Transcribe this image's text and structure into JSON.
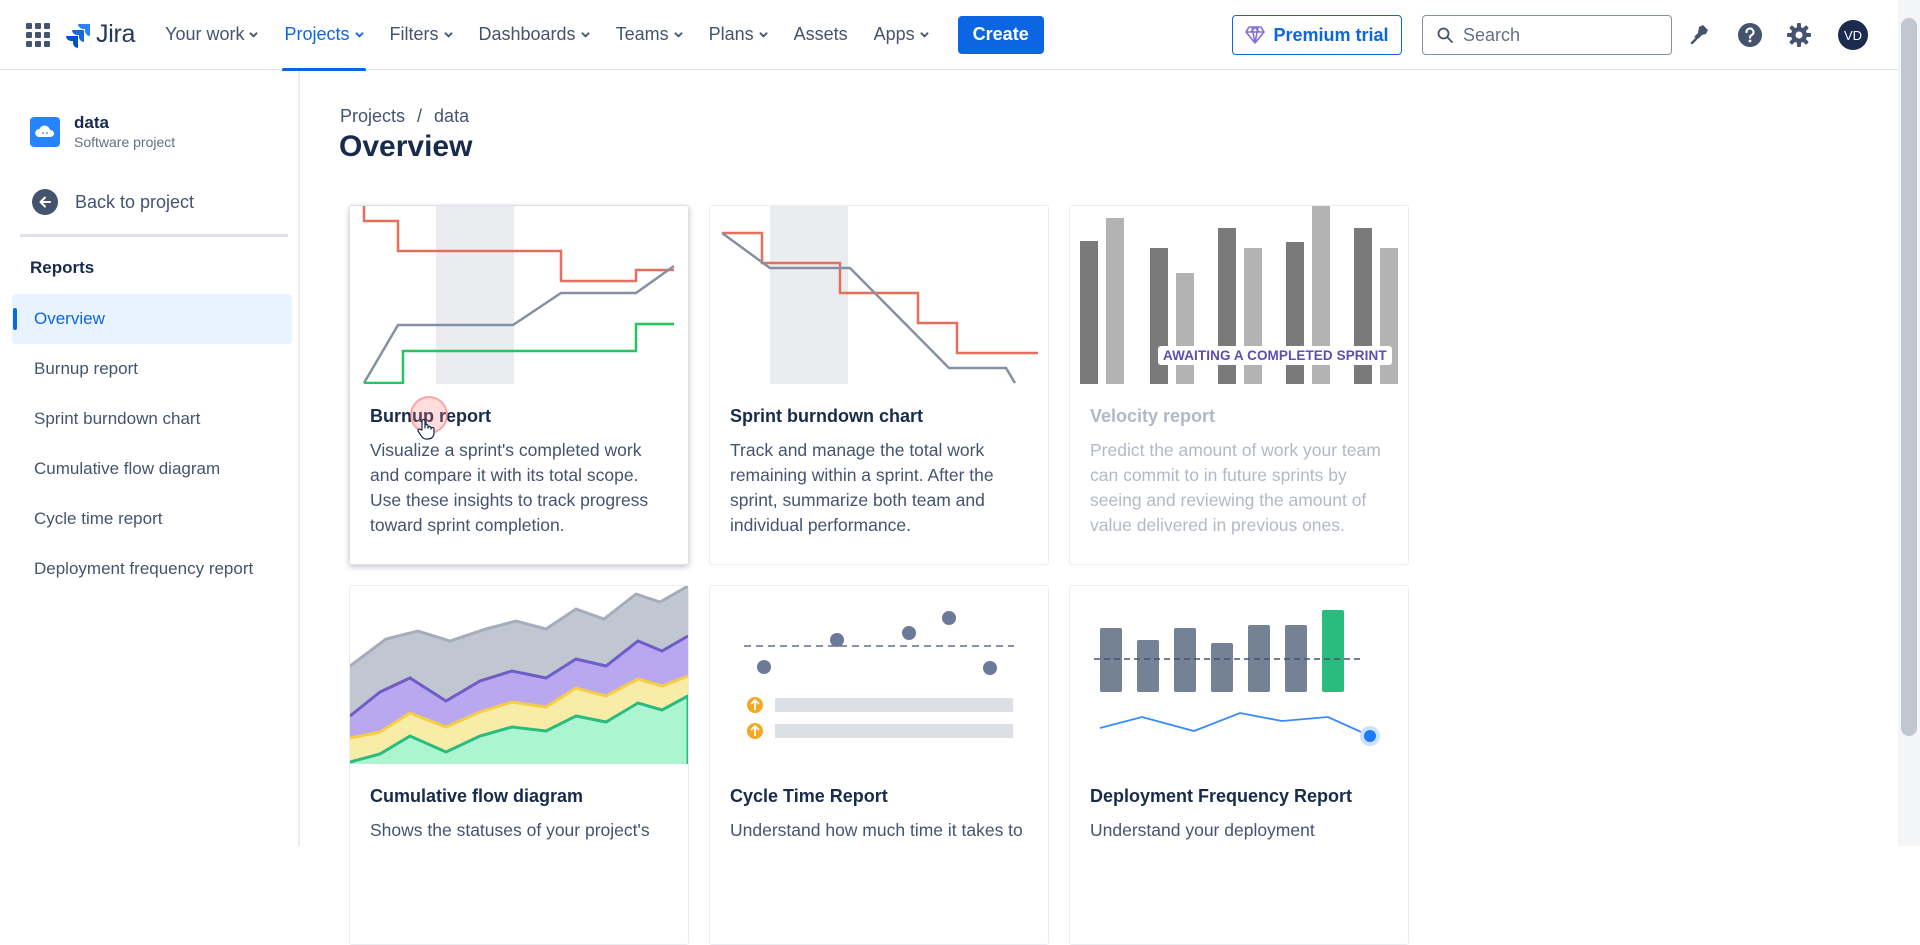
{
  "topnav": {
    "logo_text": "Jira",
    "items": [
      {
        "label": "Your work",
        "dropdown": true
      },
      {
        "label": "Projects",
        "dropdown": true,
        "active": true
      },
      {
        "label": "Filters",
        "dropdown": true
      },
      {
        "label": "Dashboards",
        "dropdown": true
      },
      {
        "label": "Teams",
        "dropdown": true
      },
      {
        "label": "Plans",
        "dropdown": true
      },
      {
        "label": "Assets",
        "dropdown": false
      },
      {
        "label": "Apps",
        "dropdown": true
      }
    ],
    "create_label": "Create",
    "premium_label": "Premium trial",
    "search_placeholder": "Search",
    "avatar_initials": "VD",
    "icons": [
      "app-switcher-icon",
      "notifications-icon",
      "help-icon",
      "settings-icon"
    ]
  },
  "sidebar": {
    "project_name": "data",
    "project_type": "Software project",
    "back_label": "Back to project",
    "section_label": "Reports",
    "items": [
      {
        "label": "Overview",
        "active": true
      },
      {
        "label": "Burnup report"
      },
      {
        "label": "Sprint burndown chart"
      },
      {
        "label": "Cumulative flow diagram"
      },
      {
        "label": "Cycle time report"
      },
      {
        "label": "Deployment frequency report"
      }
    ]
  },
  "main": {
    "breadcrumb": [
      "Projects",
      "data"
    ],
    "title": "Overview",
    "cards": [
      {
        "title": "Burnup report",
        "desc": "Visualize a sprint's completed work and compare it with its total scope. Use these insights to track progress toward sprint completion."
      },
      {
        "title": "Sprint burndown chart",
        "desc": "Track and manage the total work remaining within a sprint. After the sprint, summarize both team and individual performance."
      },
      {
        "title": "Velocity report",
        "desc": "Predict the amount of work your team can commit to in future sprints by seeing and reviewing the amount of value delivered in previous ones.",
        "badge": "AWAITING A COMPLETED SPRINT"
      },
      {
        "title": "Cumulative flow diagram",
        "desc": "Shows the statuses of your project's"
      },
      {
        "title": "Cycle Time Report",
        "desc": "Understand how much time it takes to"
      },
      {
        "title": "Deployment Frequency Report",
        "desc": "Understand your deployment"
      }
    ]
  },
  "colors": {
    "accent": "#0c66e4",
    "text": "#172b4d",
    "subtle_text": "#44546f",
    "red_line": "#e2705d",
    "gray_line": "#8590a2",
    "green_line": "#22c55e"
  }
}
